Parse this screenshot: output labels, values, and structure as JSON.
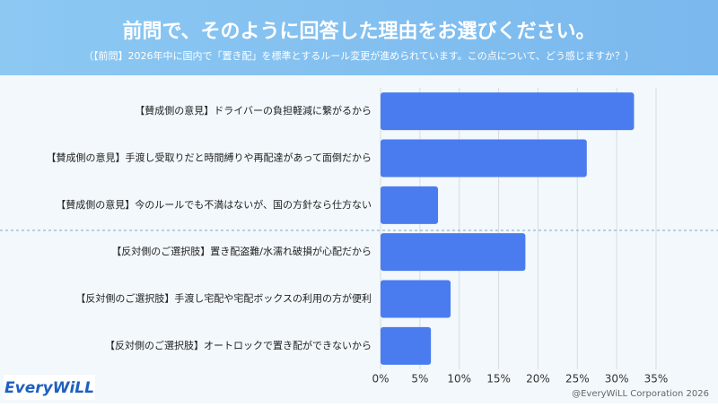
{
  "chart_data": {
    "type": "bar",
    "orientation": "horizontal",
    "title": "前問で、そのように回答した理由をお選びください。",
    "subtitle": "（【前問】2026年中に国内で「置き配」を標準とするルール変更が進められています。この点について、どう感じますか？）",
    "categories": [
      "【賛成側の意見】ドライバーの負担軽減に繋がるから",
      "【賛成側の意見】手渡し受取りだと時間縛りや再配達があって面倒だから",
      "【賛成側の意見】今のルールでも不満はないが、国の方針なら仕方ない",
      "【反対側のご選択肢】置き配盗難/水濡れ破損が心配だから",
      "【反対側のご選択肢】手渡し宅配や宅配ボックスの利用の方が便利",
      "【反対側のご選択肢】オートロックで置き配ができないから"
    ],
    "values": [
      32.2,
      26.2,
      7.3,
      18.4,
      8.9,
      6.4
    ],
    "color": "#4a7cf0",
    "xlim": [
      0,
      35
    ],
    "xticks": [
      {
        "value": 0,
        "label": "0%"
      },
      {
        "value": 5,
        "label": "5%"
      },
      {
        "value": 10,
        "label": "10%"
      },
      {
        "value": 15,
        "label": "15%"
      },
      {
        "value": 20,
        "label": "20%"
      },
      {
        "value": 25,
        "label": "25%"
      },
      {
        "value": 30,
        "label": "30%"
      },
      {
        "value": 35,
        "label": "35%"
      }
    ],
    "grid": true
  },
  "logo": "EveryWiLL",
  "footer": "@EveryWiLL Corporation 2026"
}
